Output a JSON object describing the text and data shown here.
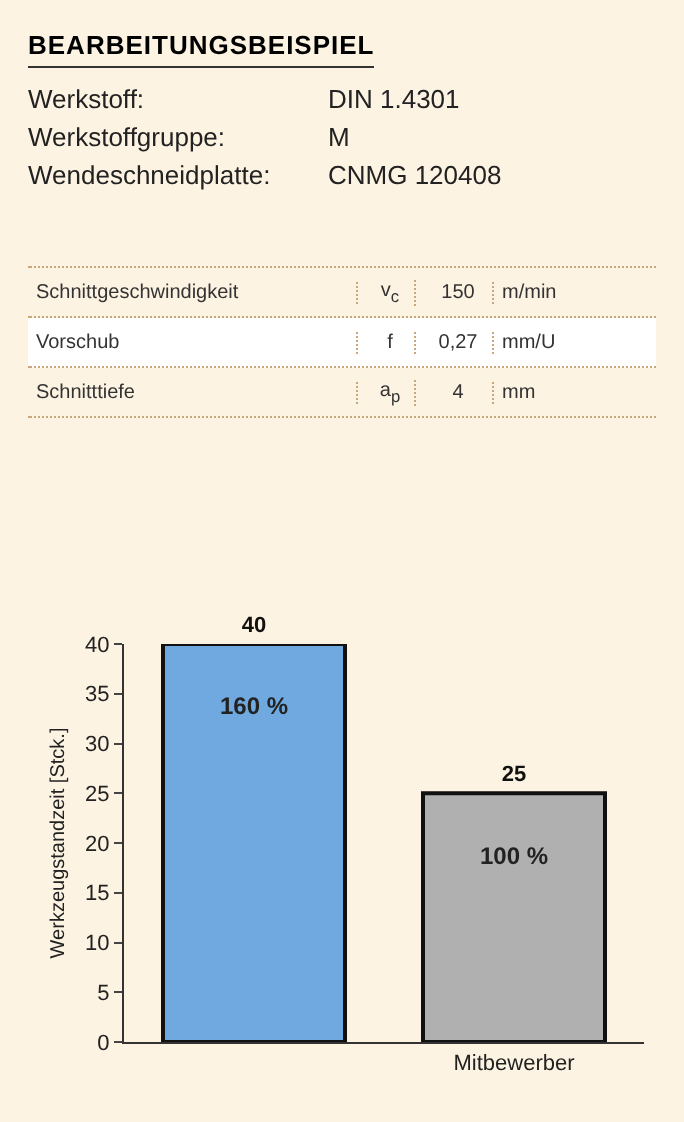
{
  "chart_data": {
    "type": "bar",
    "title": "BEARBEITUNGSBEISPIEL",
    "annotations": [
      "Werkstoff:\tDIN 1.4301",
      "Werkstoffgruppe:\tM",
      "Wendeschneidplatte:\tCNMG 120408",
      "Schnittgeschwindigkeit\tv$_{c}$\t150\tm/min",
      "Vorschub\tf\t0,27\tmm/U",
      "Schnitttiefe\ta$_{p}$\t4\tmm",
      "160 %",
      "100 %"
    ],
    "ylabel": "Werkzeugstandzeit [Stck.]",
    "categories": [
      null,
      "Mitbewerber"
    ],
    "series": [
      {
        "colors": [
          "#6fa9df",
          "#b0b0b0"
        ],
        "values": [
          40,
          25
        ]
      }
    ],
    "data_labels": true,
    "ylim": [
      0,
      40
    ],
    "yticks": [
      0,
      5,
      10,
      15,
      20,
      25,
      30,
      35,
      40
    ],
    "grid": false
  }
}
